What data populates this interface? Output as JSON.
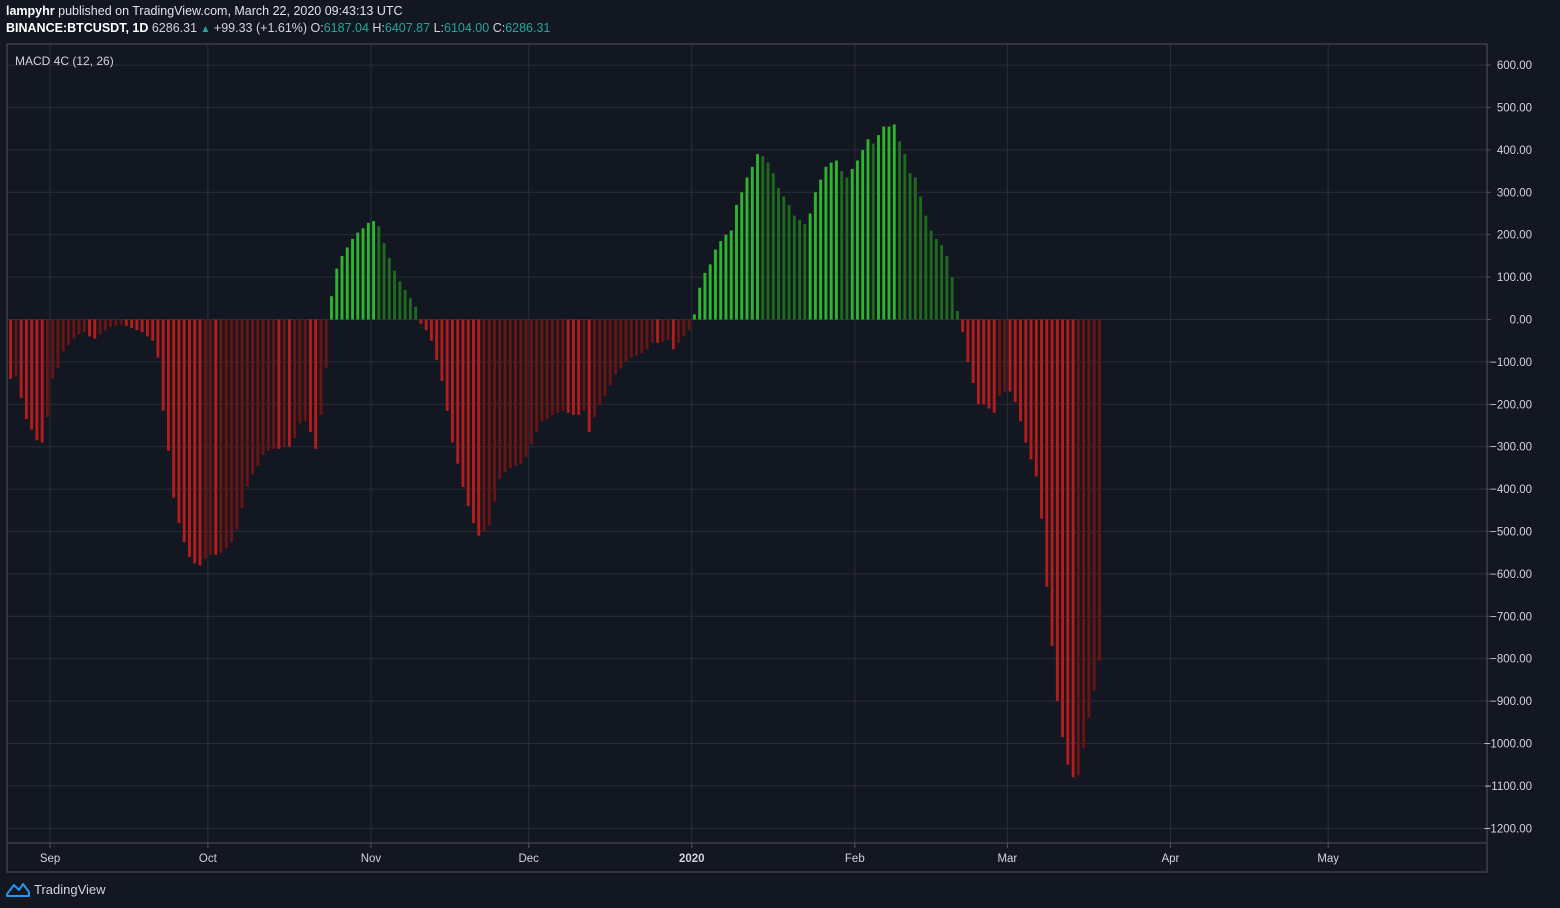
{
  "header": {
    "author": "lampyhr",
    "published_text": "published on TradingView.com, March 22, 2020 09:43:13 UTC",
    "symbol": "BINANCE:BTCUSDT, 1D",
    "last": "6286.31",
    "change": "+99.33 (+1.61%)",
    "o_label": "O:",
    "o": "6187.04",
    "h_label": "H:",
    "h": "6407.87",
    "l_label": "L:",
    "l": "6104.00",
    "c_label": "C:",
    "c": "6286.31"
  },
  "footer": {
    "brand": "TradingView"
  },
  "chart_data": {
    "type": "bar",
    "title": "MACD 4C (12, 26)",
    "ylim": [
      -1200,
      600
    ],
    "yticks": [
      600,
      500,
      400,
      300,
      200,
      100,
      0,
      -100,
      -200,
      -300,
      -400,
      -500,
      -600,
      -700,
      -800,
      -900,
      -1000,
      -1100,
      -1200
    ],
    "ytick_labels": [
      "600.00",
      "500.00",
      "400.00",
      "300.00",
      "200.00",
      "100.00",
      "0.00",
      "−100.00",
      "−200.00",
      "−300.00",
      "−400.00",
      "−500.00",
      "−600.00",
      "−700.00",
      "−800.00",
      "−900.00",
      "−1000.00",
      "−1100.00",
      "−1200.00"
    ],
    "xticks": [
      {
        "label": "Sep",
        "date": "2019-09-01",
        "bold": false
      },
      {
        "label": "Oct",
        "date": "2019-10-01",
        "bold": false
      },
      {
        "label": "Nov",
        "date": "2019-11-01",
        "bold": false
      },
      {
        "label": "Dec",
        "date": "2019-12-01",
        "bold": false
      },
      {
        "label": "2020",
        "date": "2020-01-01",
        "bold": true
      },
      {
        "label": "Feb",
        "date": "2020-02-01",
        "bold": false
      },
      {
        "label": "Mar",
        "date": "2020-03-01",
        "bold": false
      },
      {
        "label": "Apr",
        "date": "2020-04-01",
        "bold": false
      },
      {
        "label": "May",
        "date": "2020-05-01",
        "bold": false
      }
    ],
    "x_start": "2019-08-24",
    "x_end": "2020-05-31",
    "colors": {
      "pos_rising": "#2db52d",
      "pos_falling": "#1e6b1e",
      "neg_falling": "#b71c1c",
      "neg_rising": "#6b1414"
    },
    "values": [
      -140,
      -135,
      -185,
      -235,
      -260,
      -285,
      -290,
      -230,
      -140,
      -115,
      -75,
      -60,
      -45,
      -35,
      -30,
      -40,
      -45,
      -35,
      -25,
      -18,
      -15,
      -12,
      -15,
      -20,
      -25,
      -30,
      -40,
      -50,
      -90,
      -215,
      -310,
      -420,
      -480,
      -525,
      -560,
      -575,
      -580,
      -565,
      -555,
      -555,
      -550,
      -540,
      -525,
      -495,
      -445,
      -395,
      -365,
      -345,
      -320,
      -310,
      -305,
      -305,
      -300,
      -300,
      -280,
      -245,
      -240,
      -265,
      -305,
      -225,
      -115,
      55,
      120,
      150,
      170,
      190,
      205,
      215,
      228,
      232,
      220,
      180,
      145,
      115,
      90,
      70,
      50,
      30,
      -10,
      -25,
      -50,
      -95,
      -145,
      -215,
      -290,
      -340,
      -395,
      -440,
      -480,
      -510,
      -500,
      -485,
      -430,
      -375,
      -360,
      -350,
      -345,
      -340,
      -325,
      -295,
      -265,
      -240,
      -235,
      -225,
      -220,
      -215,
      -220,
      -225,
      -225,
      -215,
      -265,
      -230,
      -200,
      -180,
      -155,
      -130,
      -115,
      -100,
      -90,
      -85,
      -80,
      -70,
      -55,
      -55,
      -52,
      -48,
      -70,
      -55,
      -40,
      -25,
      12,
      75,
      110,
      130,
      165,
      185,
      200,
      210,
      270,
      300,
      335,
      360,
      390,
      385,
      370,
      345,
      310,
      290,
      270,
      245,
      235,
      225,
      250,
      300,
      330,
      360,
      370,
      375,
      350,
      335,
      355,
      375,
      400,
      425,
      415,
      435,
      455,
      455,
      460,
      420,
      390,
      345,
      335,
      290,
      245,
      210,
      190,
      175,
      150,
      100,
      20,
      -30,
      -100,
      -150,
      -200,
      -200,
      -210,
      -220,
      -180,
      -170,
      -170,
      -195,
      -240,
      -290,
      -330,
      -370,
      -470,
      -630,
      -770,
      -900,
      -985,
      -1050,
      -1080,
      -1075,
      -1010,
      -940,
      -875,
      -805
    ]
  }
}
